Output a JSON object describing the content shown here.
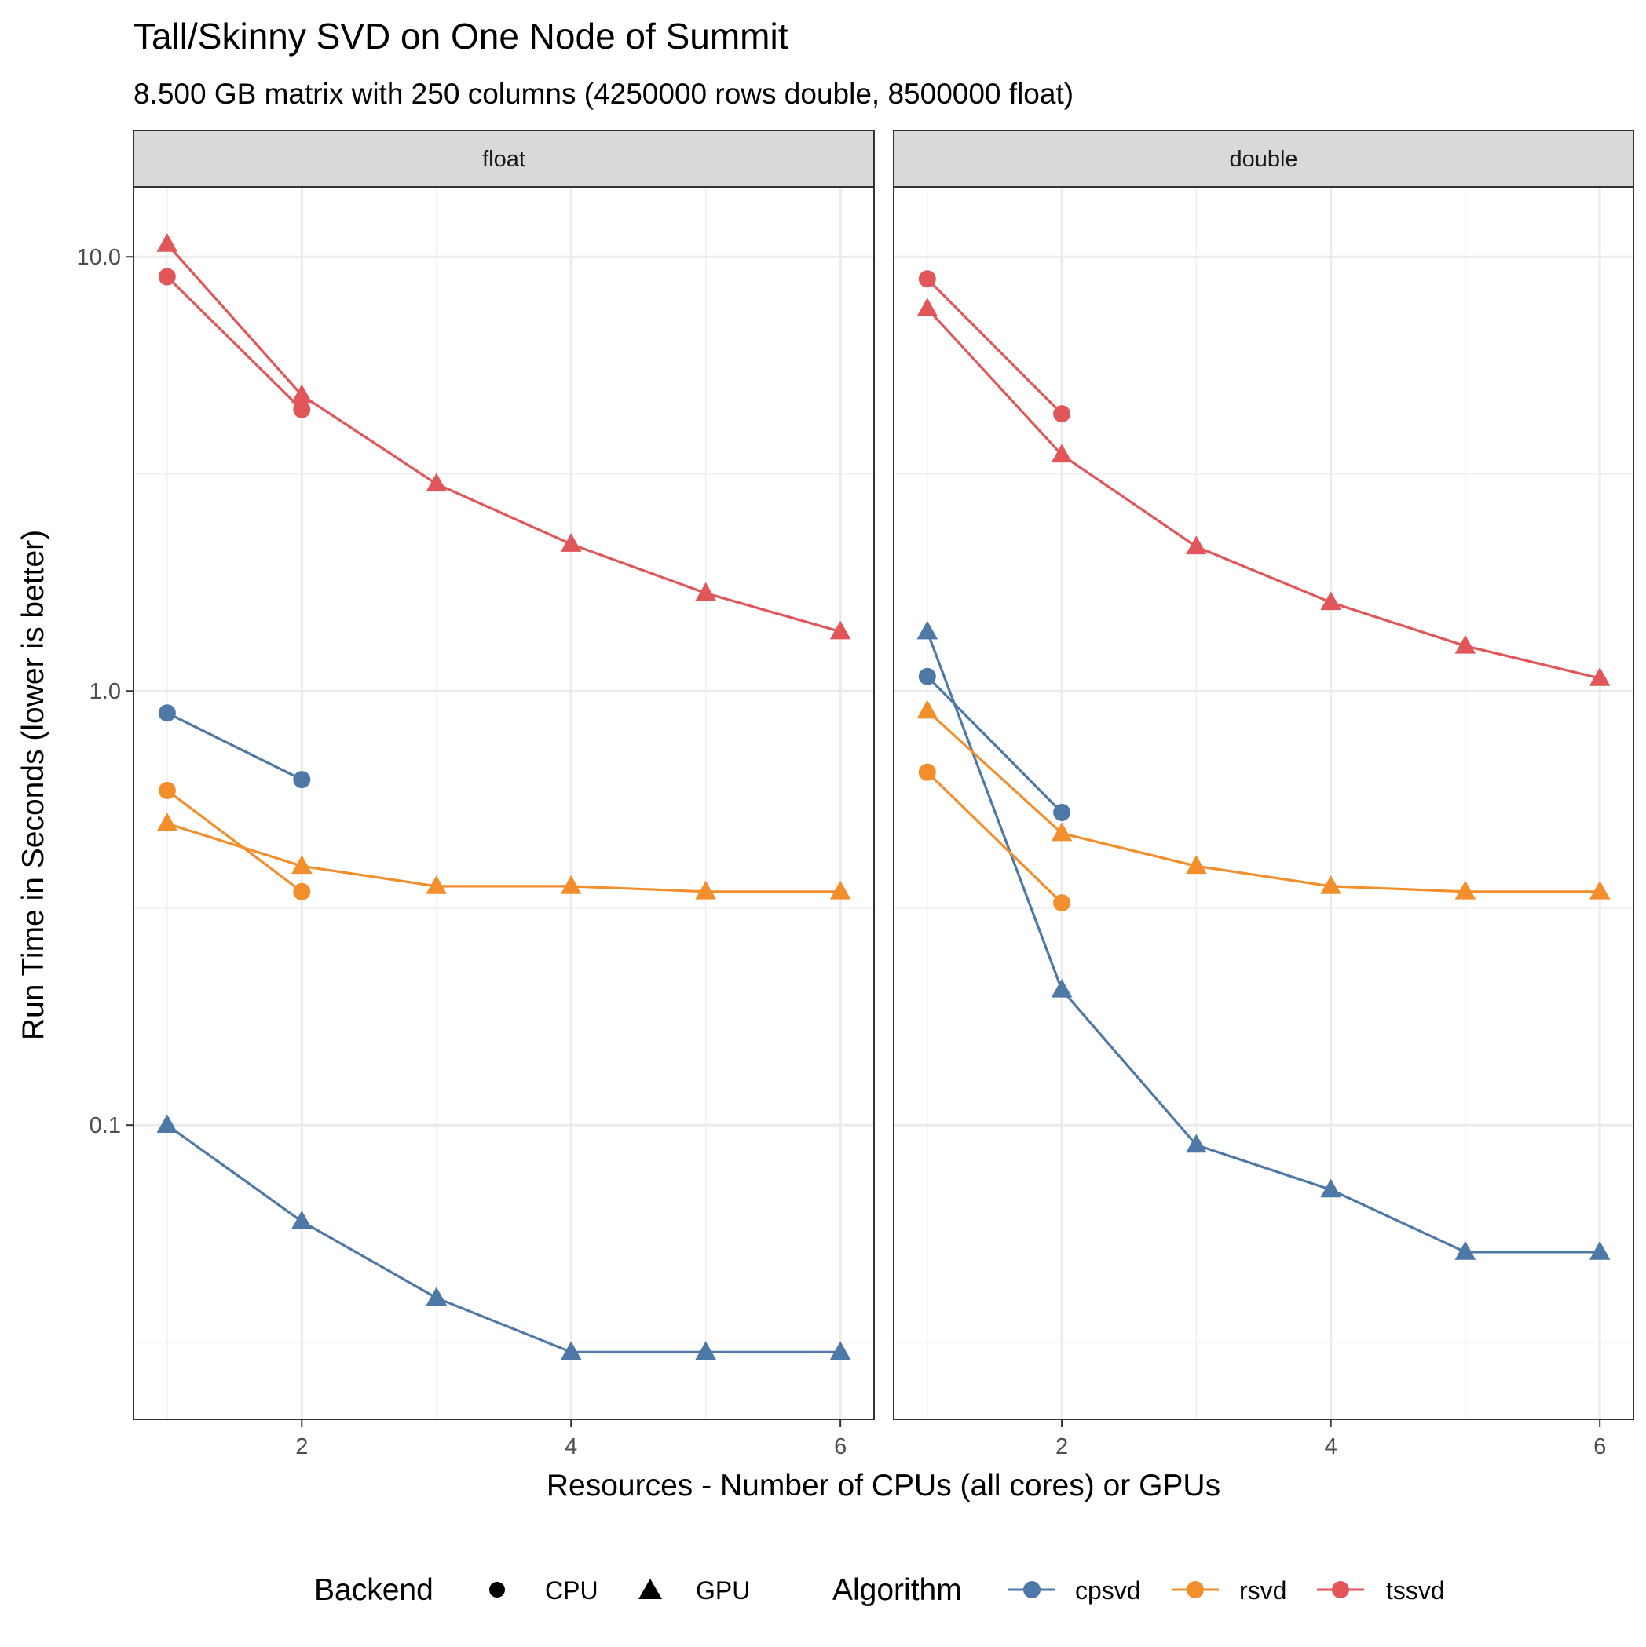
{
  "chart_data": {
    "type": "line",
    "title": "Tall/Skinny SVD on One Node of Summit",
    "subtitle": "8.500 GB matrix with 250 columns (4250000 rows double, 8500000 float)",
    "xlabel": "Resources - Number of CPUs (all cores) or GPUs",
    "ylabel": "Run Time in Seconds (lower is better)",
    "y_scale": "log10",
    "ylim": [
      0.021,
      14.5
    ],
    "xlim": [
      0.75,
      6.25
    ],
    "x_ticks": [
      2,
      4,
      6
    ],
    "y_ticks": [
      0.1,
      1.0,
      10.0
    ],
    "y_tick_labels": [
      "0.1",
      "1.0",
      "10.0"
    ],
    "grid": true,
    "legend_position": "bottom",
    "legends": {
      "backend": {
        "title": "Backend",
        "items": [
          {
            "label": "CPU",
            "shape": "circle"
          },
          {
            "label": "GPU",
            "shape": "triangle"
          }
        ]
      },
      "algorithm": {
        "title": "Algorithm",
        "items": [
          {
            "label": "cpsvd",
            "color": "#4e79a7"
          },
          {
            "label": "rsvd",
            "color": "#f28e2b"
          },
          {
            "label": "tssvd",
            "color": "#e15759"
          }
        ]
      }
    },
    "panels": [
      {
        "label": "float",
        "series": [
          {
            "algorithm": "tssvd",
            "backend": "GPU",
            "x": [
              1,
              2,
              3,
              4,
              5,
              6
            ],
            "y": [
              10.7,
              4.8,
              3.0,
              2.18,
              1.68,
              1.37
            ]
          },
          {
            "algorithm": "tssvd",
            "backend": "CPU",
            "x": [
              1,
              2
            ],
            "y": [
              9.0,
              4.45
            ]
          },
          {
            "algorithm": "cpsvd",
            "backend": "CPU",
            "x": [
              1,
              2
            ],
            "y": [
              0.89,
              0.625
            ]
          },
          {
            "algorithm": "rsvd",
            "backend": "CPU",
            "x": [
              1,
              2
            ],
            "y": [
              0.59,
              0.345
            ]
          },
          {
            "algorithm": "rsvd",
            "backend": "GPU",
            "x": [
              1,
              2,
              3,
              4,
              5,
              6
            ],
            "y": [
              0.495,
              0.395,
              0.355,
              0.355,
              0.345,
              0.345
            ]
          },
          {
            "algorithm": "cpsvd",
            "backend": "GPU",
            "x": [
              1,
              2,
              3,
              4,
              5,
              6
            ],
            "y": [
              0.1,
              0.06,
              0.04,
              0.03,
              0.03,
              0.03
            ]
          }
        ]
      },
      {
        "label": "double",
        "series": [
          {
            "algorithm": "tssvd",
            "backend": "CPU",
            "x": [
              1,
              2
            ],
            "y": [
              8.9,
              4.35
            ]
          },
          {
            "algorithm": "tssvd",
            "backend": "GPU",
            "x": [
              1,
              2,
              3,
              4,
              5,
              6
            ],
            "y": [
              7.6,
              3.5,
              2.15,
              1.6,
              1.27,
              1.07
            ]
          },
          {
            "algorithm": "cpsvd",
            "backend": "GPU",
            "x": [
              1,
              2,
              3,
              4,
              5,
              6
            ],
            "y": [
              1.37,
              0.205,
              0.09,
              0.071,
              0.051,
              0.051
            ]
          },
          {
            "algorithm": "cpsvd",
            "backend": "CPU",
            "x": [
              1,
              2
            ],
            "y": [
              1.08,
              0.525
            ]
          },
          {
            "algorithm": "rsvd",
            "backend": "GPU",
            "x": [
              1,
              2,
              3,
              4,
              5,
              6
            ],
            "y": [
              0.9,
              0.47,
              0.395,
              0.355,
              0.345,
              0.345
            ]
          },
          {
            "algorithm": "rsvd",
            "backend": "CPU",
            "x": [
              1,
              2
            ],
            "y": [
              0.65,
              0.325
            ]
          }
        ]
      }
    ]
  }
}
